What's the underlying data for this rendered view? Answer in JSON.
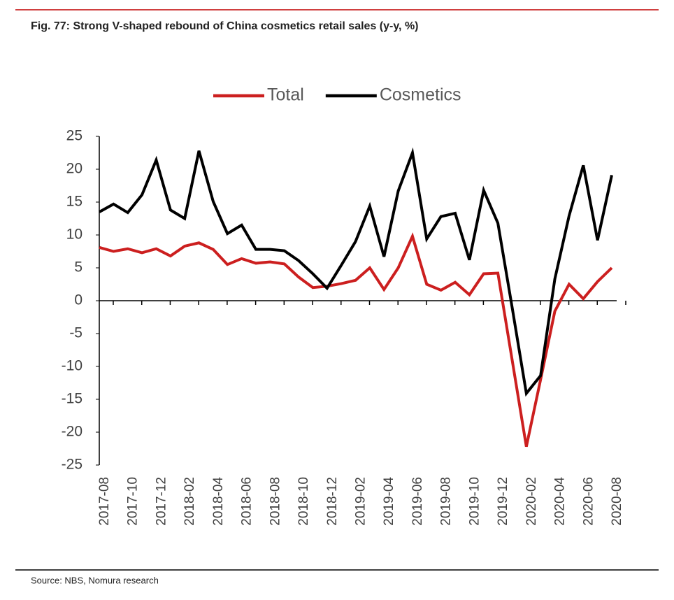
{
  "chart_data": {
    "type": "line",
    "title": "Fig. 77: Strong V-shaped rebound of China cosmetics retail sales (y-y, %)",
    "source": "Source: NBS, Nomura research",
    "categories": [
      "2017-08",
      null,
      "2017-10",
      null,
      "2017-12",
      null,
      "2018-02",
      null,
      "2018-04",
      null,
      "2018-06",
      null,
      "2018-08",
      null,
      "2018-10",
      null,
      "2018-12",
      null,
      "2019-02",
      null,
      "2019-04",
      null,
      "2019-06",
      null,
      "2019-08",
      null,
      "2019-10",
      null,
      "2019-12",
      null,
      "2020-02",
      null,
      "2020-04",
      null,
      "2020-06",
      null,
      "2020-08"
    ],
    "series": [
      {
        "name": "Total",
        "color": "#cc1f1f",
        "values": [
          8.1,
          7.5,
          7.9,
          7.3,
          7.9,
          6.8,
          8.3,
          8.8,
          7.8,
          5.5,
          6.4,
          5.7,
          5.9,
          5.6,
          3.6,
          2.0,
          2.2,
          2.6,
          3.1,
          5.0,
          1.7,
          5.0,
          9.8,
          2.5,
          1.6,
          2.8,
          0.9,
          4.1,
          4.2,
          -9.0,
          -22.2,
          -12.0,
          -1.6,
          2.5,
          0.3,
          2.9,
          5.0
        ]
      },
      {
        "name": "Cosmetics",
        "color": "#000000",
        "values": [
          13.5,
          14.7,
          13.4,
          16.1,
          21.4,
          13.8,
          12.5,
          22.8,
          15.1,
          10.2,
          11.5,
          7.8,
          7.8,
          7.6,
          6.1,
          4.1,
          1.9,
          5.4,
          9.0,
          14.4,
          6.7,
          16.7,
          22.5,
          9.4,
          12.8,
          13.3,
          6.2,
          16.8,
          11.8,
          -1.0,
          -14.1,
          -11.4,
          3.3,
          12.9,
          20.6,
          9.2,
          19.1
        ]
      }
    ],
    "ylim": [
      -25,
      25
    ],
    "yticks": [
      25,
      20,
      15,
      10,
      5,
      0,
      -5,
      -10,
      -15,
      -20,
      -25
    ],
    "legend": "top",
    "grid": false
  }
}
